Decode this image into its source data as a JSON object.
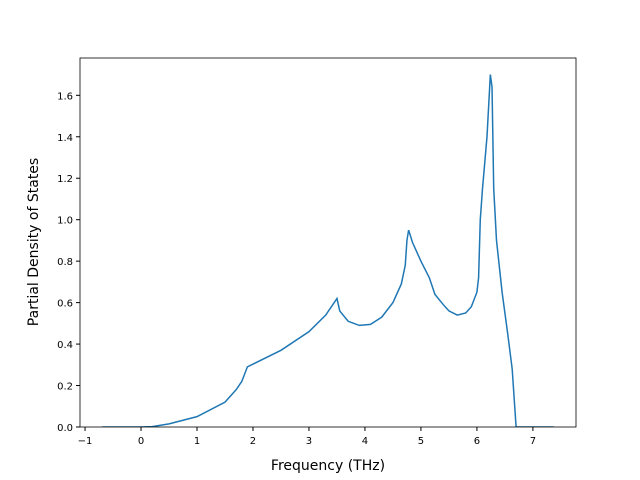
{
  "chart_data": {
    "type": "line",
    "xlabel": "Frequency (THz)",
    "ylabel": "Partial Density of States",
    "x": [
      -0.69,
      0,
      0.2,
      0.5,
      1.0,
      1.5,
      1.7,
      1.8,
      1.9,
      2.5,
      3.0,
      3.3,
      3.5,
      3.55,
      3.7,
      3.9,
      4.1,
      4.3,
      4.5,
      4.65,
      4.72,
      4.75,
      4.78,
      4.85,
      5.0,
      5.15,
      5.25,
      5.4,
      5.5,
      5.65,
      5.8,
      5.9,
      6.0,
      6.03,
      6.06,
      6.1,
      6.18,
      6.21,
      6.24,
      6.27,
      6.3,
      6.35,
      6.45,
      6.55,
      6.63,
      6.7,
      7.37
    ],
    "series": [
      {
        "color": "#1f77b4",
        "values": [
          0,
          0,
          0.002,
          0.015,
          0.05,
          0.12,
          0.18,
          0.22,
          0.29,
          0.37,
          0.46,
          0.54,
          0.62,
          0.56,
          0.51,
          0.49,
          0.495,
          0.53,
          0.6,
          0.69,
          0.78,
          0.9,
          0.95,
          0.89,
          0.8,
          0.72,
          0.64,
          0.59,
          0.56,
          0.54,
          0.55,
          0.58,
          0.65,
          0.72,
          1.0,
          1.15,
          1.4,
          1.55,
          1.7,
          1.64,
          1.15,
          0.9,
          0.65,
          0.45,
          0.28,
          0,
          0
        ]
      }
    ],
    "xlim": [
      -1.09,
      7.77
    ],
    "ylim": [
      0,
      1.78
    ],
    "xticks": [
      {
        "value": -1,
        "label": "−1"
      },
      0,
      1,
      2,
      3,
      4,
      5,
      6,
      7
    ],
    "yticks": [
      {
        "value": 0,
        "label": "0.0"
      },
      0.2,
      0.4,
      0.6,
      0.8,
      {
        "value": 1,
        "label": "1.0"
      },
      1.2,
      1.4,
      1.6
    ]
  }
}
